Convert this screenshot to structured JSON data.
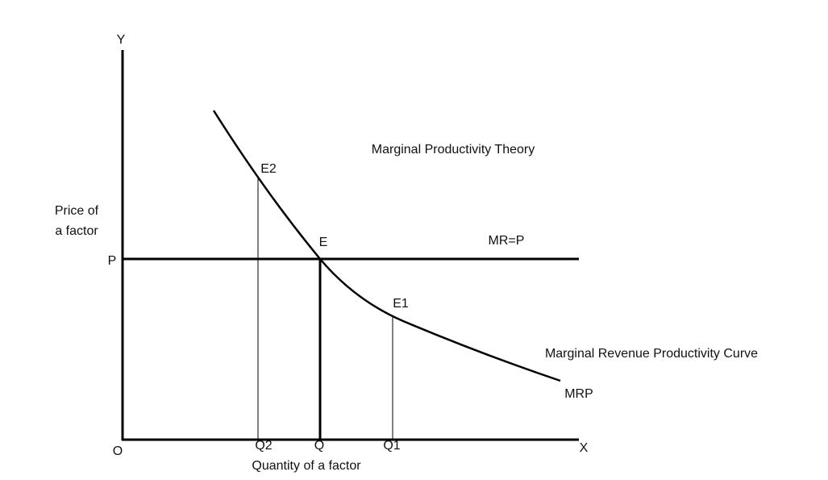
{
  "title": "Marginal Productivity Theory",
  "axes": {
    "y_label": "Y",
    "x_label": "X",
    "origin": "O",
    "y_title": [
      "Price of",
      "a factor"
    ],
    "x_title": "Quantity of a factor"
  },
  "price_level": "P",
  "quantities": [
    "Q2",
    "Q",
    "Q1"
  ],
  "points": [
    "E2",
    "E",
    "E1"
  ],
  "lines": {
    "horizontal": "MR=P",
    "curve_name": "Marginal Revenue Productivity Curve",
    "curve": "MRP"
  }
}
